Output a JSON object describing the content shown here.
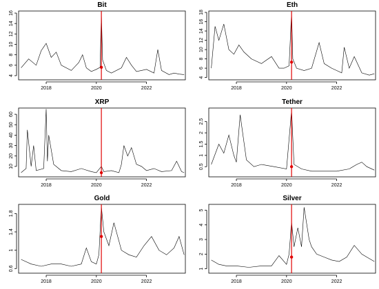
{
  "chart_data": [
    {
      "type": "line",
      "title": "Bit",
      "xlim": [
        2016.9,
        2023.55
      ],
      "ylim": [
        3.2,
        16.4
      ],
      "xticks": [
        2018,
        2020,
        2022
      ],
      "yticks": [
        4,
        6,
        8,
        10,
        12,
        14,
        16
      ],
      "event_x": 2020.2,
      "marker": {
        "x": 2020.2,
        "y": 5.6
      },
      "series": [
        {
          "x": [
            2017.0,
            2017.3,
            2017.6,
            2017.8,
            2017.9,
            2018.0,
            2018.2,
            2018.4,
            2018.6,
            2019.0,
            2019.3,
            2019.45,
            2019.6,
            2019.8,
            2020.0,
            2020.15,
            2020.2,
            2020.25,
            2020.4,
            2020.6,
            2021.0,
            2021.2,
            2021.4,
            2021.6,
            2021.8,
            2022.0,
            2022.3,
            2022.45,
            2022.6,
            2022.9,
            2023.1,
            2023.3,
            2023.5
          ],
          "y": [
            5.5,
            7.2,
            6.0,
            8.8,
            9.5,
            10.2,
            7.5,
            8.5,
            6.0,
            5.0,
            6.5,
            8.0,
            5.5,
            4.8,
            5.2,
            5.6,
            16.0,
            7.0,
            5.0,
            4.5,
            5.5,
            7.5,
            6.0,
            4.8,
            5.0,
            5.2,
            4.5,
            9.0,
            5.0,
            4.2,
            4.5,
            4.3,
            4.2
          ]
        }
      ]
    },
    {
      "type": "line",
      "title": "Eth",
      "xlim": [
        2016.9,
        2023.55
      ],
      "ylim": [
        3.5,
        18.3
      ],
      "xticks": [
        2018,
        2020,
        2022
      ],
      "yticks": [
        4,
        6,
        8,
        10,
        12,
        14,
        16,
        18
      ],
      "event_x": 2020.2,
      "marker": {
        "x": 2020.2,
        "y": 7.3
      },
      "series": [
        {
          "x": [
            2017.0,
            2017.15,
            2017.3,
            2017.5,
            2017.7,
            2017.9,
            2018.1,
            2018.3,
            2018.6,
            2019.0,
            2019.4,
            2019.7,
            2019.9,
            2020.1,
            2020.2,
            2020.25,
            2020.4,
            2020.7,
            2021.0,
            2021.3,
            2021.5,
            2021.8,
            2022.0,
            2022.2,
            2022.3,
            2022.5,
            2022.7,
            2023.0,
            2023.3,
            2023.5
          ],
          "y": [
            6.0,
            15.0,
            12.0,
            15.5,
            10.0,
            9.0,
            11.0,
            9.5,
            8.0,
            7.0,
            8.5,
            6.0,
            6.0,
            6.5,
            18.0,
            8.0,
            6.0,
            5.5,
            6.0,
            11.5,
            7.0,
            6.0,
            5.5,
            5.0,
            10.5,
            6.0,
            8.5,
            5.0,
            4.5,
            4.8
          ]
        }
      ]
    },
    {
      "type": "line",
      "title": "XRP",
      "xlim": [
        2016.9,
        2023.55
      ],
      "ylim": [
        0,
        66
      ],
      "xticks": [
        2018,
        2020,
        2022
      ],
      "yticks": [
        10,
        20,
        30,
        40,
        50,
        60
      ],
      "event_x": 2020.2,
      "marker": {
        "x": 2020.2,
        "y": 4
      },
      "series": [
        {
          "x": [
            2017.0,
            2017.2,
            2017.25,
            2017.4,
            2017.5,
            2017.6,
            2017.9,
            2018.0,
            2018.05,
            2018.1,
            2018.3,
            2018.6,
            2019.0,
            2019.4,
            2019.8,
            2020.0,
            2020.2,
            2020.3,
            2020.6,
            2020.9,
            2021.0,
            2021.1,
            2021.25,
            2021.4,
            2021.6,
            2021.8,
            2022.0,
            2022.3,
            2022.6,
            2023.0,
            2023.2,
            2023.4,
            2023.5
          ],
          "y": [
            4,
            8,
            45,
            10,
            30,
            6,
            8,
            65,
            15,
            40,
            12,
            6,
            5,
            8,
            5,
            4,
            10,
            5,
            6,
            4,
            12,
            30,
            20,
            28,
            12,
            10,
            6,
            8,
            5,
            6,
            15,
            5,
            4
          ]
        }
      ]
    },
    {
      "type": "line",
      "title": "Tether",
      "xlim": [
        2016.9,
        2023.55
      ],
      "ylim": [
        0.05,
        3.1
      ],
      "xticks": [
        2018,
        2020,
        2022
      ],
      "yticks": [
        0.5,
        1.0,
        1.5,
        2.0,
        2.5
      ],
      "event_x": 2020.2,
      "marker": {
        "x": 2020.2,
        "y": 0.5
      },
      "series": [
        {
          "x": [
            2017.0,
            2017.3,
            2017.5,
            2017.7,
            2017.9,
            2018.0,
            2018.15,
            2018.4,
            2018.7,
            2019.0,
            2019.5,
            2020.0,
            2020.2,
            2020.3,
            2020.6,
            2021.0,
            2021.5,
            2022.0,
            2022.5,
            2022.8,
            2023.0,
            2023.2,
            2023.5
          ],
          "y": [
            0.6,
            1.5,
            1.1,
            1.9,
            1.0,
            0.7,
            2.8,
            0.8,
            0.5,
            0.6,
            0.5,
            0.4,
            3.0,
            0.6,
            0.4,
            0.3,
            0.3,
            0.3,
            0.4,
            0.6,
            0.7,
            0.5,
            0.35
          ]
        }
      ]
    },
    {
      "type": "line",
      "title": "Gold",
      "xlim": [
        2016.9,
        2023.55
      ],
      "ylim": [
        0.5,
        2.0
      ],
      "xticks": [
        2018,
        2020,
        2022
      ],
      "yticks": [
        0.6,
        1.0,
        1.4,
        1.8
      ],
      "event_x": 2020.2,
      "marker": {
        "x": 2020.2,
        "y": 1.3
      },
      "series": [
        {
          "x": [
            2017.0,
            2017.4,
            2017.8,
            2018.2,
            2018.6,
            2019.0,
            2019.4,
            2019.6,
            2019.8,
            2020.0,
            2020.1,
            2020.2,
            2020.3,
            2020.5,
            2020.7,
            2020.9,
            2021.0,
            2021.3,
            2021.6,
            2021.9,
            2022.2,
            2022.5,
            2022.8,
            2023.1,
            2023.3,
            2023.5
          ],
          "y": [
            0.8,
            0.7,
            0.65,
            0.7,
            0.7,
            0.65,
            0.7,
            1.05,
            0.75,
            0.7,
            0.9,
            1.95,
            1.4,
            1.1,
            1.6,
            1.2,
            1.0,
            0.9,
            0.85,
            1.1,
            1.3,
            1.0,
            0.9,
            1.05,
            1.3,
            0.9
          ]
        }
      ]
    },
    {
      "type": "line",
      "title": "Silver",
      "xlim": [
        2016.9,
        2023.55
      ],
      "ylim": [
        0.7,
        5.4
      ],
      "xticks": [
        2018,
        2020,
        2022
      ],
      "yticks": [
        1,
        2,
        3,
        4,
        5
      ],
      "event_x": 2020.2,
      "marker": {
        "x": 2020.2,
        "y": 1.8
      },
      "series": [
        {
          "x": [
            2017.0,
            2017.3,
            2017.6,
            2018.0,
            2018.5,
            2019.0,
            2019.4,
            2019.7,
            2020.0,
            2020.1,
            2020.2,
            2020.3,
            2020.45,
            2020.6,
            2020.7,
            2020.9,
            2021.0,
            2021.2,
            2021.5,
            2021.8,
            2022.1,
            2022.4,
            2022.7,
            2023.0,
            2023.2,
            2023.5
          ],
          "y": [
            1.6,
            1.3,
            1.2,
            1.2,
            1.1,
            1.2,
            1.2,
            1.9,
            1.3,
            2.0,
            4.2,
            2.5,
            3.8,
            2.5,
            5.2,
            3.0,
            2.5,
            2.0,
            1.8,
            1.6,
            1.5,
            1.8,
            2.6,
            2.0,
            1.8,
            1.5
          ]
        }
      ]
    }
  ]
}
